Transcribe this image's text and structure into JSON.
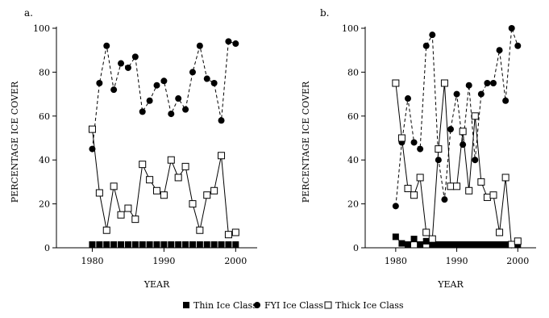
{
  "legend": [
    {
      "label": "Thin Ice Class",
      "marker": "filled-square"
    },
    {
      "label": "FYI Ice Class",
      "marker": "filled-circle"
    },
    {
      "label": "Thick Ice Class",
      "marker": "open-square"
    }
  ],
  "chart_data": [
    {
      "type": "line",
      "panel_label": "a.",
      "xlabel": "YEAR",
      "ylabel": "PERCENTAGE ICE COVER",
      "xlim": [
        1975,
        2003
      ],
      "ylim": [
        0,
        100
      ],
      "x_ticks": [
        1980,
        1990,
        2000
      ],
      "y_ticks": [
        0,
        20,
        40,
        60,
        80,
        100
      ],
      "grid": false,
      "series": [
        {
          "name": "Thin Ice Class",
          "marker": "filled-square",
          "line": "none",
          "x": [
            1980,
            1981,
            1982,
            1983,
            1984,
            1985,
            1986,
            1987,
            1988,
            1989,
            1990,
            1991,
            1992,
            1993,
            1994,
            1995,
            1996,
            1997,
            1998,
            1999,
            2000
          ],
          "y": [
            0.5,
            0.5,
            0.5,
            0.5,
            0.5,
            0.5,
            0.5,
            0.5,
            0.5,
            0.5,
            0.5,
            0.5,
            0.5,
            0.5,
            0.5,
            0.5,
            0.5,
            0.5,
            0.5,
            0.5,
            0.5
          ]
        },
        {
          "name": "FYI Ice Class",
          "marker": "filled-circle",
          "line": "dashed",
          "x": [
            1980,
            1981,
            1982,
            1983,
            1984,
            1985,
            1986,
            1987,
            1988,
            1989,
            1990,
            1991,
            1992,
            1993,
            1994,
            1995,
            1996,
            1997,
            1998,
            1999,
            2000
          ],
          "y": [
            45,
            75,
            92,
            72,
            84,
            82,
            87,
            62,
            67,
            74,
            76,
            61,
            68,
            63,
            80,
            92,
            77,
            75,
            58,
            94,
            93
          ]
        },
        {
          "name": "Thick Ice Class",
          "marker": "open-square",
          "line": "solid",
          "x": [
            1980,
            1981,
            1982,
            1983,
            1984,
            1985,
            1986,
            1987,
            1988,
            1989,
            1990,
            1991,
            1992,
            1993,
            1994,
            1995,
            1996,
            1997,
            1998,
            1999,
            2000
          ],
          "y": [
            54,
            25,
            8,
            28,
            15,
            18,
            13,
            38,
            31,
            26,
            24,
            40,
            32,
            37,
            20,
            8,
            24,
            26,
            42,
            6,
            7
          ]
        }
      ]
    },
    {
      "type": "line",
      "panel_label": "b.",
      "xlabel": "YEAR",
      "ylabel": "PERCENTAGE ICE COVER",
      "xlim": [
        1975,
        2003
      ],
      "ylim": [
        0,
        100
      ],
      "x_ticks": [
        1980,
        1990,
        2000
      ],
      "y_ticks": [
        0,
        20,
        40,
        60,
        80,
        100
      ],
      "grid": false,
      "series": [
        {
          "name": "Thin Ice Class",
          "marker": "filled-square",
          "line": "solid",
          "x": [
            1980,
            1981,
            1982,
            1983,
            1984,
            1985,
            1986,
            1987,
            1988,
            1989,
            1990,
            1991,
            1992,
            1993,
            1994,
            1995,
            1996,
            1997,
            1998,
            1999,
            2000
          ],
          "y": [
            5,
            2,
            1,
            4,
            1,
            3,
            1,
            1,
            1,
            1,
            1,
            1,
            1,
            1,
            1,
            1,
            1,
            1,
            1,
            1,
            1
          ]
        },
        {
          "name": "FYI Ice Class",
          "marker": "filled-circle",
          "line": "dashed",
          "x": [
            1980,
            1981,
            1982,
            1983,
            1984,
            1985,
            1986,
            1987,
            1988,
            1989,
            1990,
            1991,
            1992,
            1993,
            1994,
            1995,
            1996,
            1997,
            1998,
            1999,
            2000
          ],
          "y": [
            19,
            48,
            68,
            48,
            45,
            92,
            97,
            40,
            22,
            54,
            70,
            47,
            74,
            40,
            70,
            75,
            75,
            90,
            67,
            100,
            92
          ]
        },
        {
          "name": "Thick Ice Class",
          "marker": "open-square",
          "line": "solid",
          "x": [
            1980,
            1981,
            1982,
            1983,
            1984,
            1985,
            1986,
            1987,
            1988,
            1989,
            1990,
            1991,
            1992,
            1993,
            1994,
            1995,
            1996,
            1997,
            1998,
            1999,
            2000
          ],
          "y": [
            75,
            50,
            27,
            24,
            32,
            7,
            4,
            45,
            75,
            28,
            28,
            53,
            26,
            60,
            30,
            23,
            24,
            7,
            32,
            0,
            3
          ]
        }
      ]
    }
  ]
}
